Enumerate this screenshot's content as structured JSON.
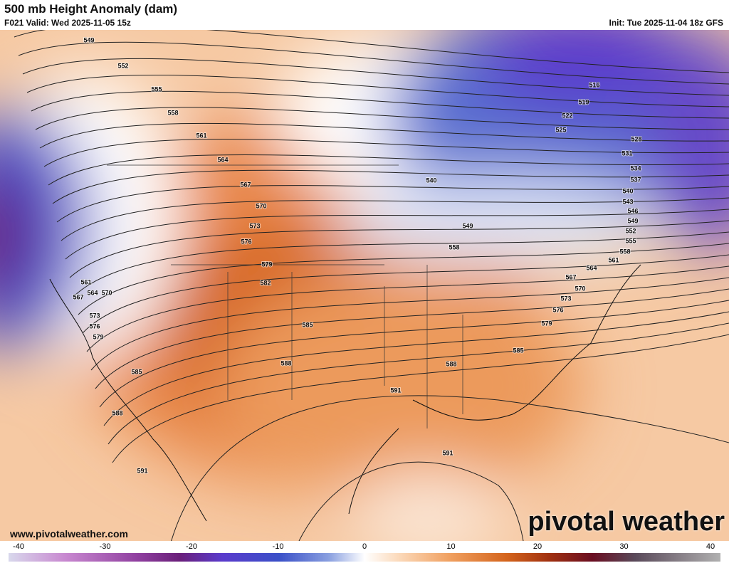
{
  "header": {
    "title": "500 mb Height Anomaly (dam)",
    "valid": "F021 Valid: Wed 2025-11-05 15z",
    "init": "Init: Tue 2025-11-04 18z GFS"
  },
  "contour_labels": [
    "549",
    "552",
    "555",
    "558",
    "561",
    "564",
    "567",
    "570",
    "573",
    "576",
    "579",
    "582",
    "585",
    "588",
    "591",
    "591",
    "591",
    "588",
    "585",
    "579",
    "576",
    "573",
    "570",
    "567",
    "564",
    "561",
    "516",
    "519",
    "522",
    "525",
    "528",
    "531",
    "534",
    "537",
    "540",
    "543",
    "546",
    "549",
    "552",
    "555",
    "558",
    "561",
    "564",
    "567",
    "570",
    "573",
    "576",
    "579",
    "585",
    "588",
    "558",
    "549",
    "540"
  ],
  "footer": {
    "website": "www.pivotalweather.com",
    "logo": "pivotal weather"
  },
  "colorbar": {
    "ticks": [
      -40,
      -30,
      -20,
      -10,
      0,
      10,
      20,
      30,
      40
    ]
  }
}
